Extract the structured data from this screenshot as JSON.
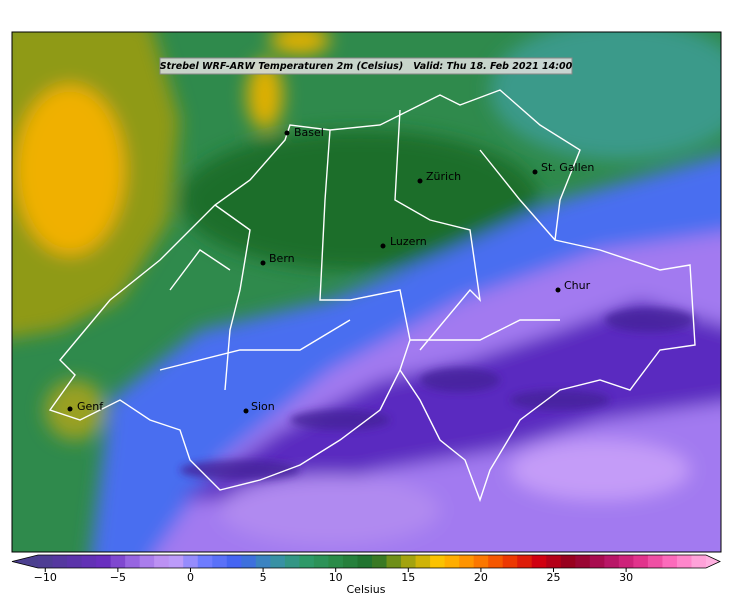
{
  "title": "Strebel WRF-ARW Temperaturen 2m (Celsius)   Valid: Thu 18. Feb 2021 14:00",
  "cities": [
    "Basel",
    "Zürich",
    "St. Gallen",
    "Luzern",
    "Bern",
    "Chur",
    "Genf",
    "Sion"
  ],
  "colorbar": {
    "label": "Celsius",
    "range": [
      -10.5,
      35.5
    ],
    "ticks": [
      {
        "value": -10,
        "label": "−10"
      },
      {
        "value": -5,
        "label": "−5"
      },
      0,
      5,
      10,
      15,
      20,
      25,
      30
    ],
    "colors": [
      "#4b3f8f",
      "#5a34a8",
      "#6a2fc0",
      "#a070e8",
      "#c8a0f8",
      "#6f7cff",
      "#3f62f0",
      "#3a8fb0",
      "#2e9a6a",
      "#2a8a45",
      "#1e6e2a",
      "#9aa010",
      "#ffc400",
      "#ff8a00",
      "#f04000",
      "#d00010",
      "#900020",
      "#b01060",
      "#e0308a",
      "#ff70c0",
      "#ffb0e0"
    ]
  }
}
